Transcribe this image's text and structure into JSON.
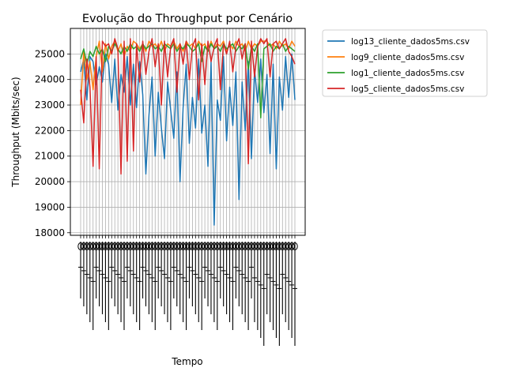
{
  "chart_data": {
    "type": "line",
    "title": "Evolução do Throughput por Cenário",
    "xlabel": "Tempo",
    "ylabel": "Throughput (Mbits/sec)",
    "ylim": [
      17900,
      26000
    ],
    "yticks": [
      18000,
      19000,
      20000,
      21000,
      22000,
      23000,
      24000,
      25000
    ],
    "grid": true,
    "legend_position": "outside-upper-right",
    "x_tick_count": 70,
    "x_tick_labels_note": "unreadable overlapping rotated labels",
    "series": [
      {
        "name": "log13_cliente_dados5ms.csv",
        "color": "#1f77b4",
        "values": [
          24300,
          24800,
          23200,
          24900,
          24700,
          23800,
          24500,
          23900,
          25000,
          24600,
          23100,
          24800,
          22800,
          24200,
          23500,
          24900,
          23000,
          24600,
          22900,
          24700,
          23400,
          20300,
          22600,
          24100,
          21000,
          23500,
          22100,
          20900,
          23900,
          22800,
          21700,
          24300,
          20000,
          22900,
          24600,
          21500,
          23300,
          22100,
          24800,
          21900,
          23000,
          20600,
          24700,
          18300,
          23200,
          22400,
          24900,
          21600,
          23700,
          22200,
          24300,
          19300,
          23900,
          22000,
          24700,
          20900,
          24400,
          23100,
          24800,
          22700,
          24200,
          21100,
          24600,
          20500,
          24100,
          22800,
          24900,
          23300,
          25000,
          23200
        ]
      },
      {
        "name": "log9_cliente_dados5ms.csv",
        "color": "#ff7f0e",
        "values": [
          23000,
          25100,
          24000,
          24700,
          23600,
          24900,
          25500,
          24300,
          25400,
          24800,
          25300,
          25500,
          25100,
          25400,
          24900,
          25300,
          25100,
          25500,
          25400,
          25200,
          25400,
          25100,
          25500,
          25300,
          25400,
          25200,
          25500,
          25100,
          25400,
          25300,
          25500,
          25200,
          25400,
          25100,
          25500,
          25300,
          25400,
          25200,
          25500,
          25300,
          25400,
          25100,
          25500,
          25200,
          25400,
          25300,
          25500,
          25100,
          25400,
          25200,
          25500,
          25300,
          25400,
          25100,
          25500,
          25200,
          25400,
          25300,
          25500,
          25500,
          25500,
          25300,
          25400,
          25200,
          25500,
          25300,
          25400,
          25200,
          25500,
          25300
        ]
      },
      {
        "name": "log1_cliente_dados5ms.csv",
        "color": "#2ca02c",
        "values": [
          24800,
          25200,
          24600,
          25100,
          24900,
          25300,
          25000,
          25200,
          24700,
          25300,
          25100,
          25400,
          25200,
          25000,
          25300,
          25100,
          25400,
          25200,
          25300,
          25100,
          25400,
          25200,
          25300,
          25400,
          25200,
          25300,
          25100,
          25400,
          25300,
          25200,
          25400,
          25100,
          25300,
          25200,
          25400,
          25300,
          25100,
          25200,
          25400,
          24700,
          25300,
          25100,
          25400,
          25200,
          25300,
          25100,
          25400,
          25200,
          25300,
          25400,
          25100,
          25300,
          25200,
          25400,
          24400,
          25300,
          25100,
          25400,
          22500,
          25200,
          25300,
          25400,
          25100,
          25300,
          25200,
          25400,
          25100,
          25300,
          25200,
          25100
        ]
      },
      {
        "name": "log5_cliente_dados5ms.csv",
        "color": "#d62728",
        "values": [
          23600,
          22300,
          24800,
          23700,
          20600,
          24900,
          20500,
          25500,
          25300,
          25400,
          25000,
          25600,
          25200,
          20300,
          25500,
          20800,
          25600,
          21200,
          25400,
          23900,
          25500,
          24200,
          25100,
          25600,
          24500,
          25400,
          23000,
          25500,
          24100,
          25300,
          25600,
          23500,
          25400,
          24600,
          25500,
          24000,
          25300,
          25600,
          23200,
          25400,
          23800,
          25500,
          24700,
          25300,
          25600,
          23600,
          25400,
          25000,
          25500,
          24300,
          25300,
          25600,
          24800,
          25400,
          20700,
          25500,
          24100,
          25300,
          25600,
          25400,
          25600,
          24100,
          25400,
          25500,
          25200,
          25400,
          25600,
          25100,
          24900,
          24600
        ]
      }
    ]
  }
}
